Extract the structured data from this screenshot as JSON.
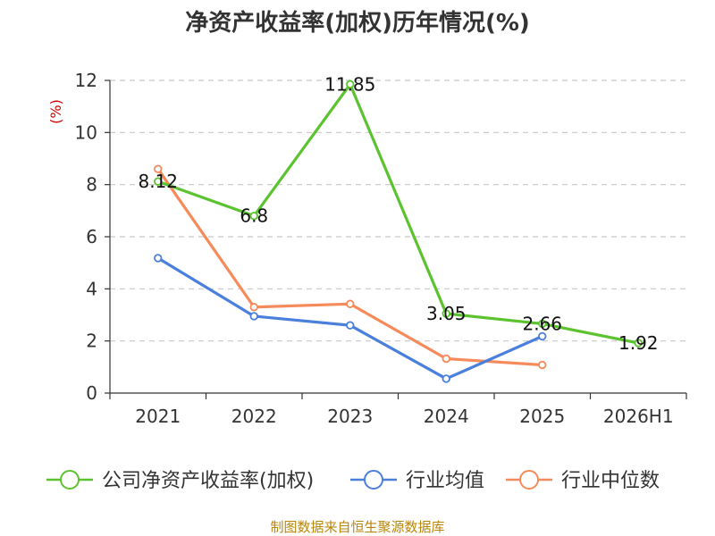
{
  "title": "净资产收益率(加权)历年情况(%)",
  "source_text": "制图数据来自恒生聚源数据库",
  "chart_data": {
    "type": "line",
    "title": "净资产收益率(加权)历年情况(%)",
    "ylabel": "(%)",
    "xlabel": "",
    "categories": [
      "2021",
      "2022",
      "2023",
      "2024",
      "2025",
      "2026H1"
    ],
    "ylim": [
      0,
      12
    ],
    "yticks": [
      0,
      2,
      4,
      6,
      8,
      10,
      12
    ],
    "grid": "horizontal-dashed",
    "legend_position": "bottom",
    "series": [
      {
        "name": "公司净资产收益率(加权)",
        "color": "#5cc330",
        "values": [
          8.12,
          6.8,
          11.85,
          3.05,
          2.66,
          1.92
        ],
        "labels": [
          "8.12",
          "6.8",
          "11.85",
          "3.05",
          "2.66",
          "1.92"
        ]
      },
      {
        "name": "行业均值",
        "color": "#4a7fdc",
        "values": [
          5.18,
          2.95,
          2.6,
          0.55,
          2.18,
          null
        ],
        "labels": []
      },
      {
        "name": "行业中位数",
        "color": "#f58a5a",
        "values": [
          8.6,
          3.3,
          3.42,
          1.32,
          1.08,
          null
        ],
        "labels": []
      }
    ]
  }
}
